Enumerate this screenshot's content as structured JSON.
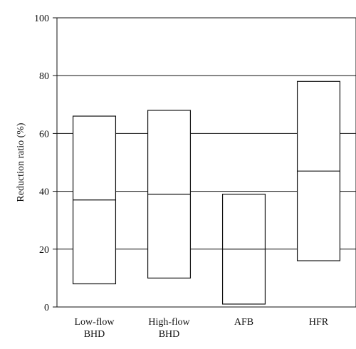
{
  "chart_data": {
    "type": "box",
    "title": "",
    "xlabel": "",
    "ylabel": "Reduction ratio (%)",
    "ylim": [
      0,
      100
    ],
    "yticks": [
      0,
      20,
      40,
      60,
      80,
      100
    ],
    "gridlines": [
      20,
      40,
      60,
      80
    ],
    "grid": "horizontal",
    "categories": [
      {
        "lines": [
          "Low-flow",
          "BHD"
        ]
      },
      {
        "lines": [
          "High-flow",
          "BHD"
        ]
      },
      {
        "lines": [
          "AFB"
        ]
      },
      {
        "lines": [
          "HFR"
        ]
      }
    ],
    "boxes": [
      {
        "low": 8,
        "median": 37,
        "high": 66
      },
      {
        "low": 10,
        "median": 39,
        "high": 68
      },
      {
        "low": 1,
        "median": 20,
        "high": 39
      },
      {
        "low": 16,
        "median": 47,
        "high": 78
      }
    ],
    "colors": {
      "line": "#111111",
      "background": "#ffffff"
    }
  }
}
